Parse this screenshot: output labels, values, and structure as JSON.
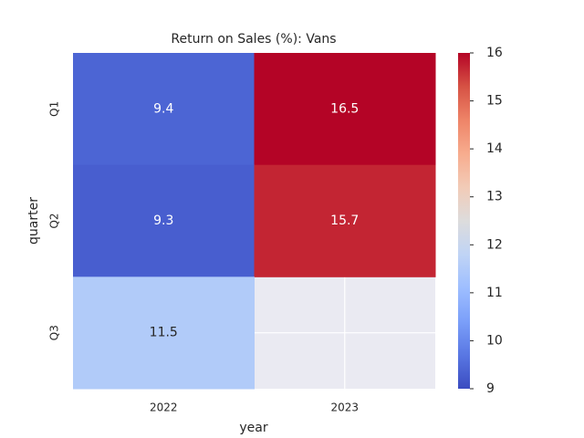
{
  "chart_data": {
    "type": "heatmap",
    "title": "Return on Sales (%): Vans",
    "x_label": "year",
    "y_label": "quarter",
    "x_categories": [
      "2022",
      "2023"
    ],
    "y_categories": [
      "Q1",
      "Q2",
      "Q3"
    ],
    "values": [
      [
        9.4,
        16.5
      ],
      [
        9.3,
        15.7
      ],
      [
        11.5,
        null
      ]
    ],
    "colormap": [
      "#3b4cc0",
      "#5977e3",
      "#7b9ff9",
      "#9ebeff",
      "#c0d4f5",
      "#dddcdc",
      "#f2cbb7",
      "#f7ac8e",
      "#ee8468",
      "#d65244",
      "#b40426"
    ],
    "clim": [
      9,
      16
    ],
    "cticks": [
      9,
      10,
      11,
      12,
      13,
      14,
      15,
      16
    ],
    "background": "#eaeaf2",
    "grid": true
  }
}
